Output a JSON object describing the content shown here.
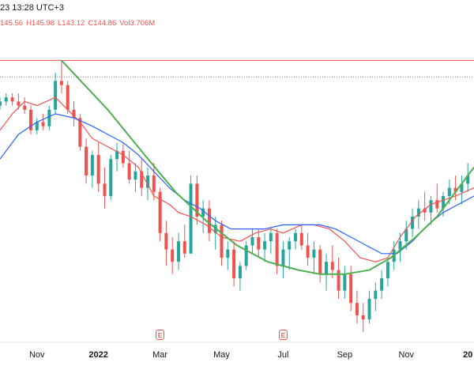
{
  "legend": {
    "timestamp": "23 13:28 UTC+3",
    "open": "145.56",
    "high": "H145.98",
    "low": "L143.12",
    "close": "C144.86",
    "volume": "Vol3.706M"
  },
  "earnings_marker": "E",
  "colors": {
    "up": "#26a69a",
    "down": "#ef5350",
    "ma_fast": "#ef5350",
    "ma_slow": "#2962ff",
    "arc": "#4caf50",
    "resistance": "#ef5350",
    "dotted": "#787b86"
  },
  "chart_data": {
    "type": "candlestick",
    "title": "",
    "x_ticks": [
      "Nov",
      "2022",
      "Mar",
      "May",
      "Jul",
      "Sep",
      "Nov",
      "20"
    ],
    "x_tick_month_index": [
      0,
      2,
      4,
      6,
      8,
      10,
      12,
      14
    ],
    "x_month_range": [
      -1.2,
      14.2
    ],
    "price_range": [
      90,
      165
    ],
    "series": [
      {
        "name": "MA fast",
        "type": "line",
        "color": "#ef5350",
        "points": [
          [
            -1.2,
            141
          ],
          [
            -0.8,
            145
          ],
          [
            -0.4,
            148
          ],
          [
            0,
            147
          ],
          [
            0.6,
            149
          ],
          [
            1,
            146
          ],
          [
            1.4,
            143
          ],
          [
            1.8,
            139
          ],
          [
            2.3,
            137
          ],
          [
            2.8,
            135
          ],
          [
            3.3,
            132
          ],
          [
            3.8,
            125
          ],
          [
            4.3,
            123
          ],
          [
            4.6,
            121
          ],
          [
            5,
            120
          ],
          [
            5.5,
            118
          ],
          [
            6,
            115
          ],
          [
            6.6,
            114
          ],
          [
            7.1,
            116
          ],
          [
            7.6,
            117
          ],
          [
            8,
            116
          ],
          [
            8.6,
            118
          ],
          [
            9,
            118
          ],
          [
            9.5,
            117
          ],
          [
            10,
            114
          ],
          [
            10.5,
            110
          ],
          [
            11,
            109
          ],
          [
            11.4,
            110
          ],
          [
            11.8,
            115
          ],
          [
            12.3,
            120
          ],
          [
            12.8,
            123
          ],
          [
            13.2,
            124
          ],
          [
            13.6,
            125
          ],
          [
            14.2,
            127
          ]
        ]
      },
      {
        "name": "MA slow",
        "type": "line",
        "color": "#2962ff",
        "points": [
          [
            -1.2,
            134
          ],
          [
            -0.6,
            140
          ],
          [
            0,
            143
          ],
          [
            0.6,
            145
          ],
          [
            1.2,
            144
          ],
          [
            1.8,
            142
          ],
          [
            2.3,
            140
          ],
          [
            2.8,
            138
          ],
          [
            3.3,
            135
          ],
          [
            3.8,
            131
          ],
          [
            4.3,
            127
          ],
          [
            4.8,
            124
          ],
          [
            5.3,
            122
          ],
          [
            5.8,
            119
          ],
          [
            6.3,
            117
          ],
          [
            6.9,
            117
          ],
          [
            7.4,
            117
          ],
          [
            8,
            118
          ],
          [
            8.6,
            118
          ],
          [
            9.2,
            118
          ],
          [
            9.7,
            117
          ],
          [
            10.2,
            115
          ],
          [
            10.7,
            113
          ],
          [
            11.2,
            111
          ],
          [
            11.7,
            111
          ],
          [
            12.2,
            114
          ],
          [
            12.7,
            118
          ],
          [
            13.2,
            121
          ],
          [
            13.7,
            123
          ],
          [
            14.2,
            125
          ]
        ]
      },
      {
        "name": "Arc",
        "type": "line",
        "color": "#4caf50",
        "points": [
          [
            0.8,
            158
          ],
          [
            2.3,
            146
          ],
          [
            3.5,
            135
          ],
          [
            4.5,
            126
          ],
          [
            5.5,
            119
          ],
          [
            6.5,
            113
          ],
          [
            7.5,
            109
          ],
          [
            8.5,
            107
          ],
          [
            9.2,
            106
          ],
          [
            10,
            106
          ],
          [
            10.8,
            107
          ],
          [
            11.5,
            110
          ],
          [
            12.3,
            115
          ],
          [
            13,
            120
          ],
          [
            13.6,
            126
          ],
          [
            14.2,
            132
          ]
        ]
      }
    ],
    "levels": [
      {
        "name": "resistance",
        "value": 158,
        "style": "solid",
        "from_month": -1.2,
        "to_month": 14.2
      },
      {
        "name": "dotted level",
        "value": 154,
        "style": "dotted",
        "from_month": -1.2,
        "to_month": 14.2
      }
    ],
    "earnings_months": [
      4,
      8
    ],
    "ohlc": [
      [
        -1.2,
        147,
        149,
        146,
        148
      ],
      [
        -1.0,
        148,
        150,
        147,
        149
      ],
      [
        -0.8,
        149,
        150,
        147,
        148
      ],
      [
        -0.6,
        148,
        150,
        146,
        147
      ],
      [
        -0.4,
        147,
        149,
        145,
        146
      ],
      [
        -0.2,
        146,
        147,
        140,
        141
      ],
      [
        0.0,
        141,
        144,
        140,
        143
      ],
      [
        0.2,
        143,
        145,
        141,
        142
      ],
      [
        0.4,
        142,
        147,
        141,
        146
      ],
      [
        0.6,
        146,
        155,
        145,
        153
      ],
      [
        0.8,
        153,
        158,
        150,
        152
      ],
      [
        1.0,
        152,
        153,
        145,
        146
      ],
      [
        1.2,
        146,
        148,
        142,
        144
      ],
      [
        1.4,
        144,
        145,
        136,
        137
      ],
      [
        1.6,
        137,
        139,
        128,
        130
      ],
      [
        1.8,
        130,
        136,
        127,
        135
      ],
      [
        2.0,
        135,
        138,
        126,
        128
      ],
      [
        2.2,
        128,
        132,
        122,
        125
      ],
      [
        2.4,
        125,
        135,
        124,
        134
      ],
      [
        2.6,
        134,
        138,
        131,
        136
      ],
      [
        2.8,
        136,
        138,
        132,
        133
      ],
      [
        3.0,
        133,
        136,
        128,
        129
      ],
      [
        3.2,
        129,
        133,
        126,
        131
      ],
      [
        3.4,
        131,
        134,
        125,
        127
      ],
      [
        3.6,
        127,
        132,
        124,
        130
      ],
      [
        3.8,
        130,
        133,
        124,
        126
      ],
      [
        4.0,
        126,
        127,
        114,
        116
      ],
      [
        4.2,
        116,
        119,
        108,
        112
      ],
      [
        4.4,
        112,
        115,
        106,
        109
      ],
      [
        4.6,
        109,
        116,
        107,
        114
      ],
      [
        4.8,
        114,
        118,
        110,
        111
      ],
      [
        5.0,
        111,
        130,
        111,
        128
      ],
      [
        5.2,
        128,
        130,
        118,
        120
      ],
      [
        5.4,
        120,
        124,
        116,
        122
      ],
      [
        5.6,
        122,
        124,
        114,
        116
      ],
      [
        5.8,
        116,
        120,
        112,
        118
      ],
      [
        6.0,
        118,
        119,
        108,
        110
      ],
      [
        6.2,
        110,
        114,
        107,
        112
      ],
      [
        6.4,
        112,
        114,
        103,
        105
      ],
      [
        6.6,
        105,
        109,
        102,
        108
      ],
      [
        6.8,
        108,
        114,
        107,
        113
      ],
      [
        7.0,
        113,
        117,
        111,
        115
      ],
      [
        7.2,
        115,
        117,
        110,
        112
      ],
      [
        7.4,
        112,
        116,
        109,
        114
      ],
      [
        7.6,
        114,
        117,
        111,
        116
      ],
      [
        7.8,
        116,
        117,
        106,
        108
      ],
      [
        8.0,
        108,
        114,
        105,
        112
      ],
      [
        8.2,
        112,
        115,
        107,
        114
      ],
      [
        8.4,
        114,
        117,
        112,
        116
      ],
      [
        8.6,
        116,
        118,
        112,
        113
      ],
      [
        8.8,
        113,
        116,
        108,
        110
      ],
      [
        9.0,
        110,
        114,
        106,
        112
      ],
      [
        9.2,
        112,
        113,
        104,
        106
      ],
      [
        9.4,
        106,
        111,
        102,
        109
      ],
      [
        9.6,
        109,
        113,
        105,
        107
      ],
      [
        9.8,
        107,
        110,
        100,
        102
      ],
      [
        10.0,
        102,
        108,
        100,
        106
      ],
      [
        10.2,
        106,
        108,
        97,
        99
      ],
      [
        10.4,
        99,
        102,
        94,
        96
      ],
      [
        10.6,
        96,
        99,
        92,
        95
      ],
      [
        10.8,
        95,
        102,
        94,
        100
      ],
      [
        11.0,
        100,
        104,
        97,
        102
      ],
      [
        11.2,
        102,
        107,
        100,
        105
      ],
      [
        11.4,
        105,
        110,
        103,
        109
      ],
      [
        11.6,
        109,
        114,
        107,
        112
      ],
      [
        11.8,
        112,
        116,
        109,
        114
      ],
      [
        12.0,
        114,
        119,
        112,
        117
      ],
      [
        12.2,
        117,
        122,
        115,
        120
      ],
      [
        12.4,
        120,
        124,
        117,
        122
      ],
      [
        12.6,
        122,
        126,
        119,
        121
      ],
      [
        12.8,
        121,
        125,
        118,
        124
      ],
      [
        13.0,
        124,
        128,
        121,
        122
      ],
      [
        13.2,
        122,
        126,
        120,
        125
      ],
      [
        13.4,
        125,
        129,
        123,
        127
      ],
      [
        13.6,
        127,
        130,
        124,
        126
      ],
      [
        13.8,
        126,
        130,
        123,
        128
      ],
      [
        14.0,
        128,
        133,
        126,
        130
      ]
    ]
  }
}
